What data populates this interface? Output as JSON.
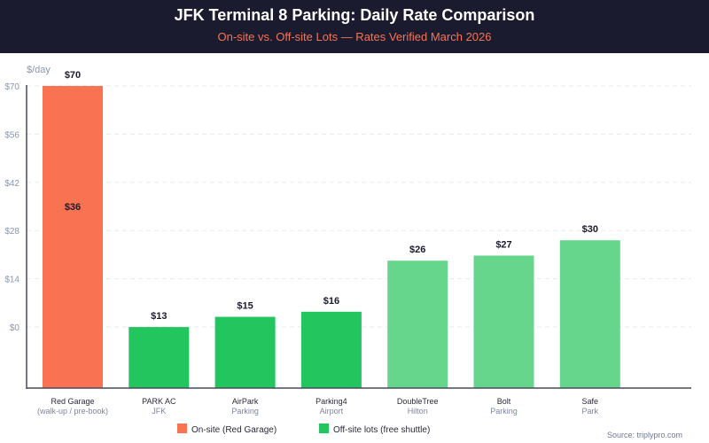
{
  "header": {
    "title": "JFK Terminal 8 Parking: Daily Rate Comparison",
    "subtitle": "On-site vs. Off-site Lots — Rates Verified March 2026"
  },
  "source": "Source: triplypro.com",
  "chart_data": {
    "type": "bar",
    "ylabel": "$/day",
    "yticks": [
      "$0",
      "$14",
      "$28",
      "$42",
      "$56",
      "$70"
    ],
    "ylim": [
      0,
      70
    ],
    "grid": true,
    "legend_placement": "bottom",
    "legend": [
      {
        "name": "On-site (Red Garage)",
        "color": "#f97352"
      },
      {
        "name": "Off-site lots (free shuttle)",
        "color": "#22c55e"
      }
    ],
    "categories": [
      {
        "name": "Red Garage",
        "sub": "(walk-up / pre-book)",
        "value": 70,
        "value_label": "$70",
        "secondary_value": 36,
        "secondary_label": "$36",
        "color": "#f97352"
      },
      {
        "name": "PARK AC",
        "sub": "JFK",
        "value": 13,
        "value_label": "$13",
        "color": "#22c55e"
      },
      {
        "name": "AirPark",
        "sub": "Parking",
        "value": 15,
        "value_label": "$15",
        "color": "#22c55e"
      },
      {
        "name": "Parking4",
        "sub": "Airport",
        "value": 16,
        "value_label": "$16",
        "color": "#22c55e"
      },
      {
        "name": "DoubleTree",
        "sub": "Hilton",
        "value": 26,
        "value_label": "$26",
        "color": "#66d68d"
      },
      {
        "name": "Bolt",
        "sub": "Parking",
        "value": 27,
        "value_label": "$27",
        "color": "#66d68d"
      },
      {
        "name": "Safe",
        "sub": "Park",
        "value": 30,
        "value_label": "$30",
        "color": "#66d68d"
      }
    ]
  }
}
